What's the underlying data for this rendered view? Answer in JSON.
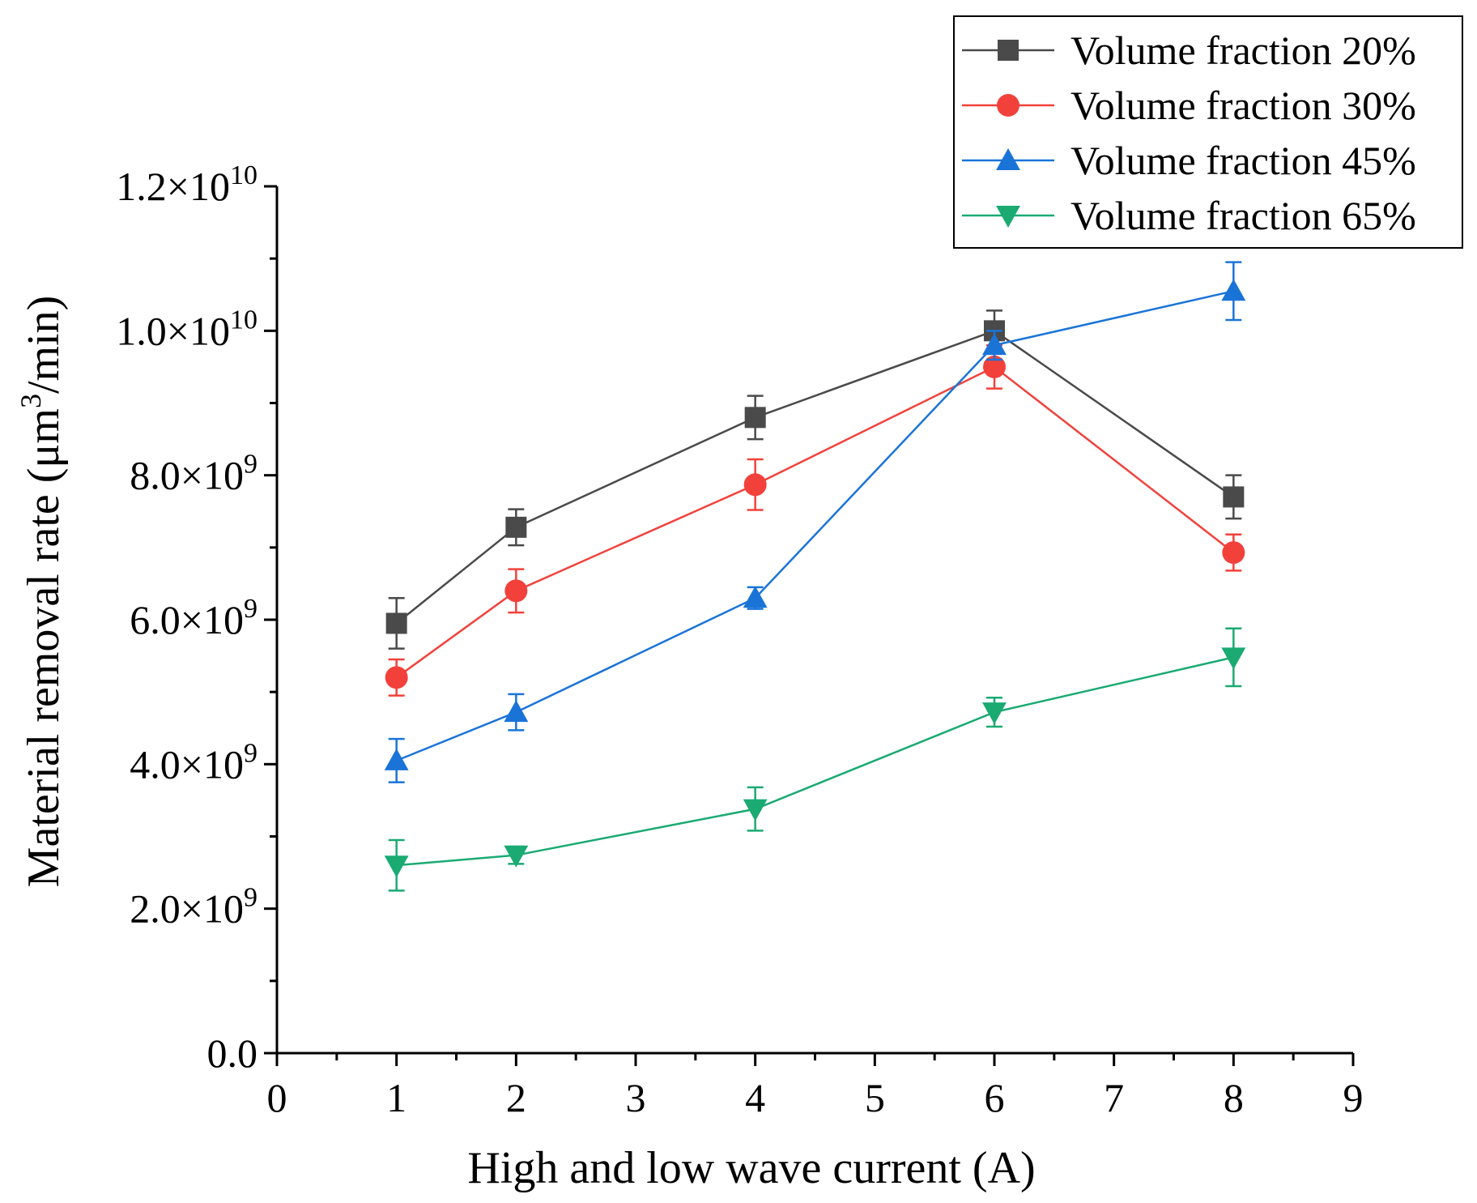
{
  "chart_data": {
    "type": "line",
    "title": "",
    "xlabel": "High and low wave current (A)",
    "ylabel": "Material removal rate (μm³/min)",
    "ylabel_parts": {
      "pre": "Material removal rate (μm",
      "sup": "3",
      "post": "/min)"
    },
    "xlim": [
      0,
      9
    ],
    "ylim": [
      0,
      12000000000
    ],
    "xticks": [
      0,
      1,
      2,
      3,
      4,
      5,
      6,
      7,
      8,
      9
    ],
    "yticks": [
      {
        "value": 0,
        "mant": "0.0",
        "exp": ""
      },
      {
        "value": 2000000000,
        "mant": "2.0×10",
        "exp": "9"
      },
      {
        "value": 4000000000,
        "mant": "4.0×10",
        "exp": "9"
      },
      {
        "value": 6000000000,
        "mant": "6.0×10",
        "exp": "9"
      },
      {
        "value": 8000000000,
        "mant": "8.0×10",
        "exp": "9"
      },
      {
        "value": 10000000000,
        "mant": "1.0×10",
        "exp": "10"
      },
      {
        "value": 12000000000,
        "mant": "1.2×10",
        "exp": "10"
      }
    ],
    "x": [
      1,
      2,
      4,
      6,
      8
    ],
    "legend_position": "top-right",
    "series": [
      {
        "name": "Volume fraction 20%",
        "color": "#4a4a4a",
        "marker": "square",
        "values": [
          5950000000,
          7280000000,
          8800000000,
          10000000000,
          7700000000
        ],
        "errors": [
          350000000,
          250000000,
          300000000,
          280000000,
          300000000
        ]
      },
      {
        "name": "Volume fraction 30%",
        "color": "#f2413b",
        "marker": "circle",
        "values": [
          5200000000,
          6400000000,
          7870000000,
          9500000000,
          6930000000
        ],
        "errors": [
          250000000,
          300000000,
          350000000,
          300000000,
          250000000
        ]
      },
      {
        "name": "Volume fraction 45%",
        "color": "#1a74d8",
        "marker": "triangle-up",
        "values": [
          4050000000,
          4720000000,
          6300000000,
          9800000000,
          10550000000
        ],
        "errors": [
          300000000,
          250000000,
          150000000,
          200000000,
          400000000
        ]
      },
      {
        "name": "Volume fraction 65%",
        "color": "#1aaa72",
        "marker": "triangle-down",
        "values": [
          2600000000,
          2740000000,
          3380000000,
          4720000000,
          5480000000
        ],
        "errors": [
          350000000,
          120000000,
          300000000,
          200000000,
          400000000
        ]
      }
    ]
  }
}
